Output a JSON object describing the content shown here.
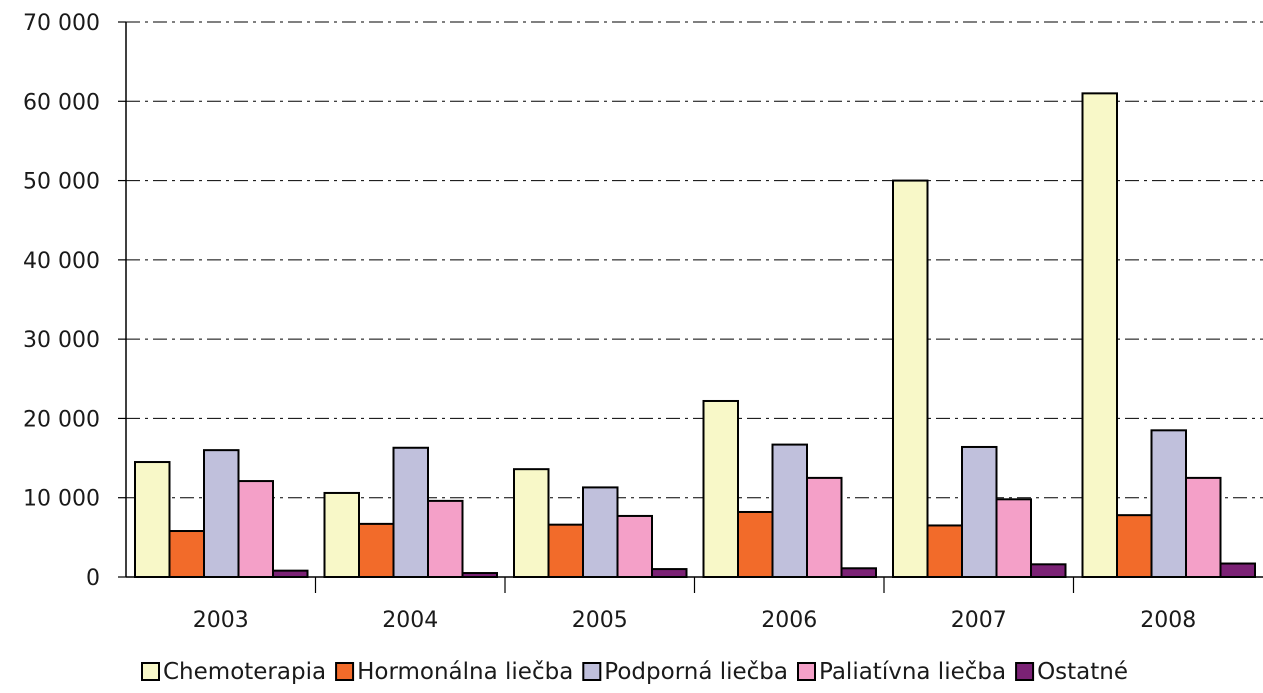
{
  "chart_data": {
    "type": "bar",
    "categories": [
      "2003",
      "2004",
      "2005",
      "2006",
      "2007",
      "2008"
    ],
    "series": [
      {
        "name": "Chemoterapia",
        "color": "#f8f8c8",
        "values": [
          14500,
          10600,
          13600,
          22200,
          50000,
          61000
        ]
      },
      {
        "name": "Hormonálna liečba",
        "color": "#f26b2a",
        "values": [
          5800,
          6700,
          6600,
          8200,
          6500,
          7800
        ]
      },
      {
        "name": "Podporná liečba",
        "color": "#c0c0dc",
        "values": [
          16000,
          16300,
          11300,
          16700,
          16400,
          18500
        ]
      },
      {
        "name": "Paliatívna liečba",
        "color": "#f4a0c8",
        "values": [
          12100,
          9600,
          7700,
          12500,
          9800,
          12500
        ]
      },
      {
        "name": "Ostatné",
        "color": "#7b2275",
        "values": [
          800,
          500,
          1000,
          1100,
          1600,
          1700
        ]
      }
    ],
    "y_ticks": [
      "0",
      "10 000",
      "20 000",
      "30 000",
      "40 000",
      "50 000",
      "60 000",
      "70 000"
    ],
    "ylim": [
      0,
      70000
    ],
    "grid": true,
    "legend_position": "bottom"
  }
}
